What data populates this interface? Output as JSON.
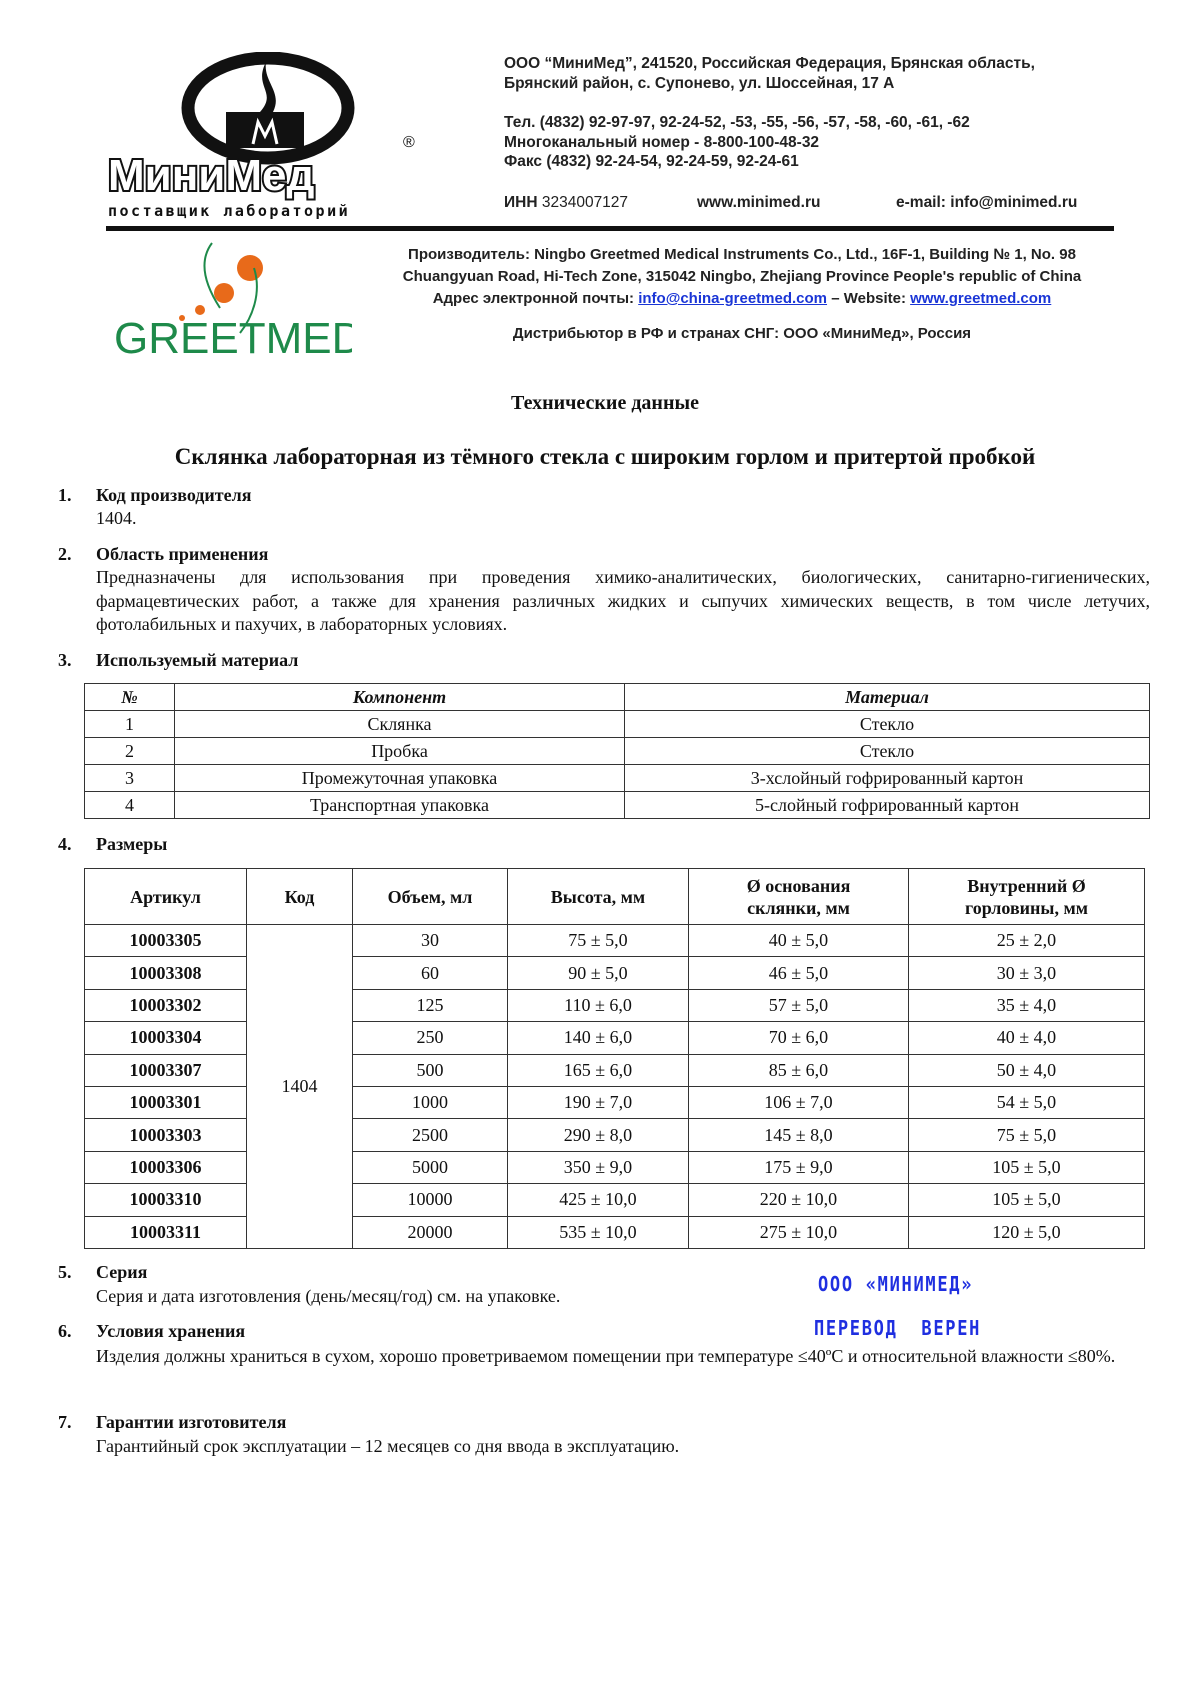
{
  "header": {
    "logo_text": "МиниМед",
    "logo_tagline": "поставщик лабораторий",
    "address_line1": "ООО “МиниМед”, 241520, Российская Федерация, Брянская область,",
    "address_line2": "Брянский район, с. Супонево, ул. Шоссейная, 17 А",
    "phone": "Тел. (4832) 92-97-97, 92-24-52, -53, -55, -56, -57, -58, -60, -61, -62",
    "multichannel": "Многоканальный номер - 8-800-100-48-32",
    "fax": "Факс (4832) 92-24-54, 92-24-59, 92-24-61",
    "inn_label": "ИНН",
    "inn": "3234007127",
    "website": "www.minimed.ru",
    "email": "e-mail: info@minimed.ru"
  },
  "manufacturer": {
    "logo_text": "GREETMED",
    "line1": "Производитель: Ningbo Greetmed Medical Instruments Co., Ltd., 16F-1, Building № 1, No. 98",
    "line2": "Chuangyuan Road, Hi-Tech Zone, 315042 Ningbo, Zhejiang Province People's republic of China",
    "email_label": "Адрес электронной почты:",
    "email": "info@china-greetmed.com",
    "website_label": "– Website:",
    "website": "www.greetmed.com",
    "distributor": "Дистрибьютор в РФ и странах СНГ: ООО «МиниМед», Россия"
  },
  "title": "Технические данные",
  "subtitle": "Склянка лабораторная из тёмного стекла с широким горлом и притертой пробкой",
  "sections": [
    {
      "num": "1.",
      "heading": "Код производителя",
      "text": "1404."
    },
    {
      "num": "2.",
      "heading": "Область применения",
      "text": "Предназначены для использования при проведения химико-аналитических, биологических, санитарно-гигиенических, фармацевтических работ, а также для хранения различных жидких и сыпучих химических веществ, в том числе летучих, фотолабильных и пахучих, в лабораторных условиях."
    },
    {
      "num": "3.",
      "heading": "Используемый материал"
    },
    {
      "num": "4.",
      "heading": "Размеры"
    },
    {
      "num": "5.",
      "heading": "Серия",
      "text": "Серия и дата изготовления (день/месяц/год) см. на упаковке."
    },
    {
      "num": "6.",
      "heading": "Условия хранения",
      "text": "Изделия должны храниться в сухом, хорошо проветриваемом помещении при температуре ≤40ºС и относительной влажности ≤80%."
    },
    {
      "num": "7.",
      "heading": "Гарантии изготовителя",
      "text": "Гарантийный срок эксплуатации – 12 месяцев со дня ввода в эксплуатацию."
    }
  ],
  "materials_table": {
    "headers": [
      "№",
      "Компонент",
      "Материал"
    ],
    "rows": [
      [
        "1",
        "Склянка",
        "Стекло"
      ],
      [
        "2",
        "Пробка",
        "Стекло"
      ],
      [
        "3",
        "Промежуточная упаковка",
        "3-хслойный гофрированный картон"
      ],
      [
        "4",
        "Транспортная упаковка",
        "5-слойный гофрированный картон"
      ]
    ]
  },
  "sizes_table": {
    "headers": [
      "Артикул",
      "Код",
      "Объем, мл",
      "Высота, мм",
      "Ø основания склянки, мм",
      "Внутренний Ø горловины, мм"
    ],
    "code": "1404",
    "rows": [
      [
        "10003305",
        "30",
        "75 ± 5,0",
        "40 ± 5,0",
        "25 ± 2,0"
      ],
      [
        "10003308",
        "60",
        "90 ± 5,0",
        "46 ± 5,0",
        "30 ± 3,0"
      ],
      [
        "10003302",
        "125",
        "110 ± 6,0",
        "57 ± 5,0",
        "35 ± 4,0"
      ],
      [
        "10003304",
        "250",
        "140 ± 6,0",
        "70 ± 6,0",
        "40 ± 4,0"
      ],
      [
        "10003307",
        "500",
        "165 ± 6,0",
        "85 ± 6,0",
        "50 ± 4,0"
      ],
      [
        "10003301",
        "1000",
        "190 ± 7,0",
        "106 ± 7,0",
        "54 ± 5,0"
      ],
      [
        "10003303",
        "2500",
        "290 ± 8,0",
        "145 ± 8,0",
        "75 ± 5,0"
      ],
      [
        "10003306",
        "5000",
        "350 ± 9,0",
        "175 ± 9,0",
        "105 ± 5,0"
      ],
      [
        "10003310",
        "10000",
        "425 ± 10,0",
        "220 ± 10,0",
        "105 ± 5,0"
      ],
      [
        "10003311",
        "20000",
        "535 ± 10,0",
        "275 ± 10,0",
        "120 ± 5,0"
      ]
    ]
  },
  "stamp": {
    "line1": "ООО «МИНИМЕД»",
    "line2": "ПЕРЕВОД  ВЕРЕН",
    "color": "#1f2fe0"
  }
}
